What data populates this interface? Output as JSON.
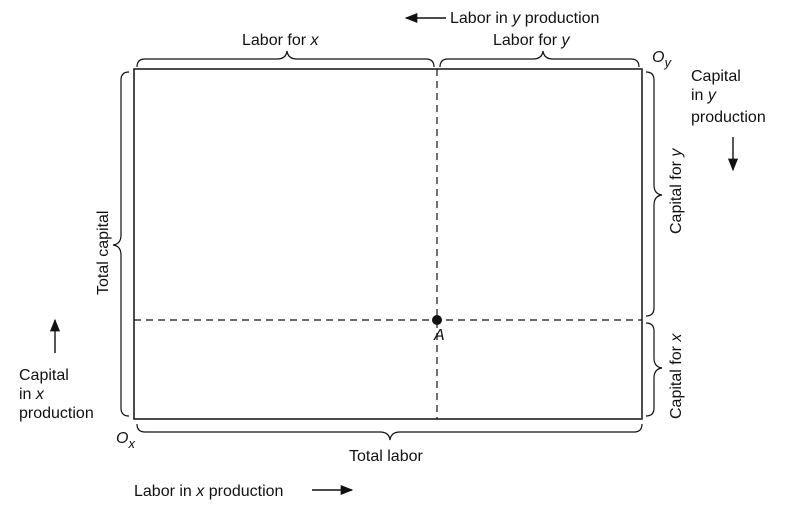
{
  "diagram": {
    "origin_x": {
      "main": "O",
      "sub": "x"
    },
    "origin_y": {
      "main": "O",
      "sub": "y"
    },
    "point": "A",
    "top_arrow_label": {
      "pre": "Labor in ",
      "var": "y",
      "post": " production"
    },
    "labor_for_x": {
      "pre": "Labor for ",
      "var": "x"
    },
    "labor_for_y": {
      "pre": "Labor for ",
      "var": "y"
    },
    "total_labor": "Total labor",
    "bottom_arrow_label": {
      "pre": "Labor in ",
      "var": "x",
      "post": " production"
    },
    "total_capital": "Total capital",
    "capital_for_y": {
      "pre": "Capital for ",
      "var": "y"
    },
    "capital_for_x": {
      "pre": "Capital for ",
      "var": "x"
    },
    "capital_in_y": {
      "line1": "Capital",
      "line2_pre": "in ",
      "line2_var": "y",
      "line3": "production"
    },
    "capital_in_x": {
      "line1": "Capital",
      "line2_pre": "in ",
      "line2_var": "x",
      "line3": "production"
    }
  }
}
